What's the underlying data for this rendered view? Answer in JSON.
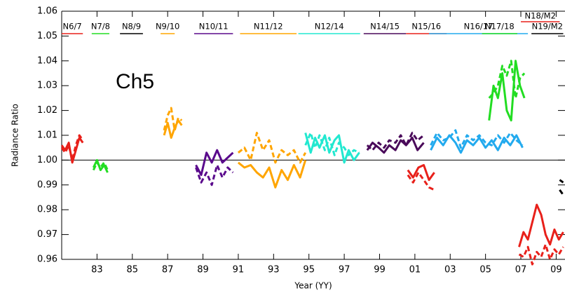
{
  "chart_data": {
    "type": "line",
    "annotation": "Ch5",
    "xlabel": "Year (YY)",
    "ylabel": "Radiance Ratio",
    "xlim": [
      1981,
      2009.5
    ],
    "ylim": [
      0.96,
      1.06
    ],
    "reference_line": {
      "value": 1.0
    },
    "xticks": [
      {
        "value": 1983,
        "label": "83"
      },
      {
        "value": 1985,
        "label": "85"
      },
      {
        "value": 1987,
        "label": "87"
      },
      {
        "value": 1989,
        "label": "89"
      },
      {
        "value": 1991,
        "label": "91"
      },
      {
        "value": 1993,
        "label": "93"
      },
      {
        "value": 1995,
        "label": "95"
      },
      {
        "value": 1997,
        "label": "97"
      },
      {
        "value": 1999,
        "label": "99"
      },
      {
        "value": 2001,
        "label": "01"
      },
      {
        "value": 2003,
        "label": "03"
      },
      {
        "value": 2005,
        "label": "05"
      },
      {
        "value": 2007,
        "label": "07"
      },
      {
        "value": 2009,
        "label": "09"
      }
    ],
    "yticks": [
      0.96,
      0.97,
      0.98,
      0.99,
      {
        "value": 1.0,
        "label": "1.00"
      },
      1.01,
      1.02,
      1.03,
      1.04,
      1.05,
      1.06
    ],
    "series": [
      {
        "name": "N6/7",
        "color": "#e8201a",
        "period": [
          1981.0,
          1982.2
        ],
        "x": [
          1981.0,
          1981.2,
          1981.4,
          1981.6,
          1981.8,
          1982.0,
          1982.2
        ],
        "solid": [
          1.006,
          1.004,
          1.007,
          0.999,
          1.004,
          1.009,
          1.007
        ],
        "dashed": [
          1.005,
          1.003,
          1.006,
          1.0,
          1.006,
          1.01,
          1.008
        ]
      },
      {
        "name": "N7/8",
        "color": "#22dd22",
        "period": [
          1982.7,
          1983.7
        ],
        "x": [
          1982.8,
          1983.0,
          1983.2,
          1983.4,
          1983.6
        ],
        "solid": [
          0.997,
          1.0,
          0.996,
          0.998,
          0.995
        ],
        "dashed": [
          0.996,
          0.999,
          0.997,
          0.999,
          0.996
        ]
      },
      {
        "name": "N8/9",
        "color": "#000000",
        "period": [
          1984.3,
          1985.6
        ],
        "x": [],
        "solid": [],
        "dashed": []
      },
      {
        "name": "N9/10",
        "color": "#ffa500",
        "period": [
          1986.6,
          1987.4
        ],
        "x": [
          1986.8,
          1987.0,
          1987.2,
          1987.4,
          1987.6,
          1987.8
        ],
        "solid": [
          1.01,
          1.015,
          1.009,
          1.013,
          1.016,
          1.014
        ],
        "dashed": [
          1.012,
          1.018,
          1.021,
          1.012,
          1.017,
          1.016
        ]
      },
      {
        "name": "N10/11",
        "color": "#5a0a8c",
        "period": [
          1988.5,
          1990.7
        ],
        "x": [
          1988.6,
          1988.9,
          1989.2,
          1989.5,
          1989.8,
          1990.1,
          1990.4,
          1990.7
        ],
        "solid": [
          0.998,
          0.994,
          1.003,
          0.999,
          1.004,
          0.999,
          1.001,
          1.003
        ],
        "dashed": [
          0.997,
          0.991,
          0.995,
          0.99,
          0.998,
          0.993,
          0.997,
          0.995
        ]
      },
      {
        "name": "N11/12",
        "color": "#ffa500",
        "period": [
          1991.1,
          1994.3
        ],
        "x": [
          1991.0,
          1991.35,
          1991.7,
          1992.05,
          1992.4,
          1992.75,
          1993.1,
          1993.45,
          1993.8,
          1994.15,
          1994.5,
          1994.8
        ],
        "solid": [
          0.999,
          0.997,
          0.998,
          0.995,
          0.993,
          0.997,
          0.989,
          0.996,
          0.992,
          0.998,
          0.993,
          1.0
        ],
        "dashed": [
          1.003,
          1.005,
          1.0,
          1.011,
          1.004,
          1.008,
          0.999,
          1.004,
          1.002,
          1.004,
          0.999,
          1.003
        ]
      },
      {
        "name": "N12/14",
        "color": "#22e8d0",
        "period": [
          1994.4,
          1997.9
        ],
        "x": [
          1994.8,
          1995.1,
          1995.35,
          1995.6,
          1995.9,
          1996.15,
          1996.45,
          1996.7,
          1997.0,
          1997.25,
          1997.55,
          1997.85
        ],
        "solid": [
          1.011,
          1.003,
          1.009,
          1.005,
          1.01,
          1.003,
          1.008,
          1.01,
          0.999,
          1.004,
          1.0,
          1.003
        ],
        "dashed": [
          1.006,
          1.011,
          1.005,
          1.01,
          1.004,
          1.009,
          1.002,
          1.007,
          1.005,
          1.002,
          1.004,
          1.003
        ]
      },
      {
        "name": "N14/15",
        "color": "#4a0a5a",
        "period": [
          1998.1,
          2000.5
        ],
        "x": [
          1998.3,
          1998.6,
          1998.95,
          1999.25,
          1999.55,
          1999.9,
          2000.2,
          2000.5,
          2000.85,
          2001.15,
          2001.5
        ],
        "solid": [
          1.004,
          1.007,
          1.005,
          1.003,
          1.006,
          1.004,
          1.008,
          1.006,
          1.009,
          1.004,
          1.007
        ],
        "dashed": [
          1.006,
          1.004,
          1.007,
          1.005,
          1.008,
          1.007,
          1.01,
          1.006,
          1.011,
          1.008,
          1.01
        ]
      },
      {
        "name": "N15/16",
        "color": "#e8201a",
        "period": [
          2000.5,
          2002.8
        ],
        "x": [
          2000.6,
          2000.9,
          2001.2,
          2001.5,
          2001.8,
          2002.1
        ],
        "solid": [
          0.996,
          0.993,
          0.997,
          0.998,
          0.992,
          0.995
        ],
        "dashed": [
          0.994,
          0.991,
          0.995,
          0.992,
          0.989,
          0.988
        ]
      },
      {
        "name": "N16/17",
        "color": "#22aaee",
        "period": [
          2001.8,
          2007.4
        ],
        "x": [
          2001.9,
          2002.25,
          2002.6,
          2002.95,
          2003.3,
          2003.6,
          2003.95,
          2004.3,
          2004.65,
          2005.0,
          2005.35,
          2005.7,
          2006.05,
          2006.4,
          2006.75,
          2007.1
        ],
        "solid": [
          1.004,
          1.009,
          1.006,
          1.01,
          1.007,
          1.003,
          1.008,
          1.006,
          1.009,
          1.005,
          1.008,
          1.004,
          1.009,
          1.006,
          1.01,
          1.005
        ],
        "dashed": [
          1.006,
          1.011,
          1.008,
          1.009,
          1.012,
          1.005,
          1.01,
          1.008,
          1.01,
          1.007,
          1.006,
          1.01,
          1.007,
          1.011,
          1.008,
          1.006
        ]
      },
      {
        "name": "N17/18",
        "color": "#22dd22",
        "period": [
          2004.8,
          2006.8
        ],
        "x": [
          2005.2,
          2005.45,
          2005.7,
          2005.95,
          2006.2,
          2006.45,
          2006.7,
          2006.95,
          2007.2
        ],
        "solid": [
          1.016,
          1.03,
          1.025,
          1.035,
          1.02,
          1.016,
          1.04,
          1.03,
          1.025
        ],
        "dashed": [
          1.025,
          1.027,
          1.03,
          1.038,
          1.034,
          1.04,
          1.025,
          1.033,
          1.035
        ]
      },
      {
        "name": "N19/M2",
        "color": "#000000",
        "period": [
          2007.6,
          2009.4
        ],
        "x": [
          2009.2,
          2009.4
        ],
        "solid": [
          0.992,
          0.991
        ],
        "dashed": [
          0.988,
          0.986
        ]
      },
      {
        "name": "N18/M2",
        "color": "#e8201a",
        "period": [
          2007.0,
          2009.2
        ],
        "x": [
          2006.9,
          2007.15,
          2007.4,
          2007.65,
          2007.9,
          2008.15,
          2008.4,
          2008.65,
          2008.9,
          2009.15,
          2009.4
        ],
        "solid": [
          0.965,
          0.971,
          0.968,
          0.975,
          0.982,
          0.978,
          0.97,
          0.966,
          0.972,
          0.968,
          0.971
        ],
        "dashed": [
          0.962,
          0.961,
          0.965,
          0.958,
          0.963,
          0.961,
          0.966,
          0.96,
          0.964,
          0.962,
          0.965
        ]
      }
    ]
  }
}
